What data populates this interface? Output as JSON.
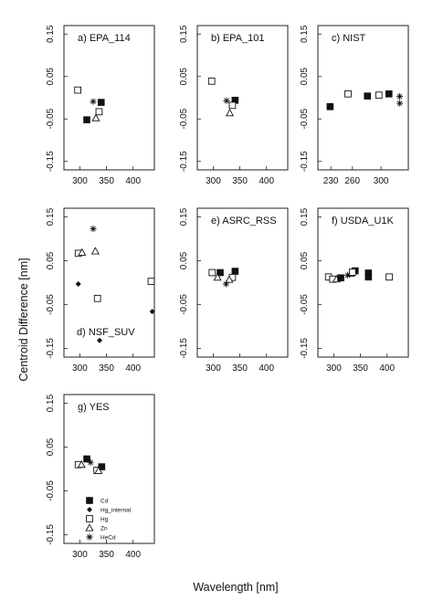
{
  "figure": {
    "ylabel": "Centroid Difference [nm]",
    "xlabel": "Wavelength [nm]"
  },
  "legend": [
    {
      "symbol": "filled-square",
      "label": "Cd"
    },
    {
      "symbol": "filled-diamond",
      "label": "Hg_internal"
    },
    {
      "symbol": "open-square",
      "label": "Hg"
    },
    {
      "symbol": "open-triangle",
      "label": "Zn"
    },
    {
      "symbol": "asterisk",
      "label": "HeCd"
    }
  ],
  "chart_data": [
    {
      "type": "scatter",
      "title": "a) EPA_114",
      "xlim": [
        270,
        440
      ],
      "ylim": [
        -0.17,
        0.17
      ],
      "xticks": [
        300,
        350,
        400
      ],
      "yticks": [
        0.15,
        0.05,
        -0.05,
        -0.15
      ],
      "ytick_labels": [
        "0.15",
        "0.05",
        "-0.05",
        "-0.15"
      ],
      "series": [
        {
          "symbol": "open-square",
          "points": [
            [
              296,
              0.018
            ]
          ]
        },
        {
          "symbol": "filled-square",
          "points": [
            [
              340,
              -0.011
            ],
            [
              313,
              -0.052
            ]
          ]
        },
        {
          "symbol": "asterisk",
          "points": [
            [
              325,
              -0.009
            ]
          ]
        },
        {
          "symbol": "open-square",
          "points": [
            [
              336,
              -0.033
            ]
          ]
        },
        {
          "symbol": "open-triangle",
          "points": [
            [
              330,
              -0.048
            ]
          ]
        }
      ]
    },
    {
      "type": "scatter",
      "title": "b) EPA_101",
      "xlim": [
        270,
        440
      ],
      "ylim": [
        -0.17,
        0.17
      ],
      "xticks": [
        300,
        350,
        400
      ],
      "yticks": [
        0.15,
        0.05,
        -0.05,
        -0.15
      ],
      "ytick_labels": [
        "0.15",
        "0.05",
        "-0.05",
        "-0.15"
      ],
      "series": [
        {
          "symbol": "open-square",
          "points": [
            [
              297,
              0.039
            ]
          ]
        },
        {
          "symbol": "filled-square",
          "points": [
            [
              341,
              -0.006
            ]
          ]
        },
        {
          "symbol": "asterisk",
          "points": [
            [
              325,
              -0.007
            ]
          ]
        },
        {
          "symbol": "open-square",
          "points": [
            [
              336,
              -0.018
            ]
          ]
        },
        {
          "symbol": "open-triangle",
          "points": [
            [
              331,
              -0.036
            ]
          ]
        }
      ]
    },
    {
      "type": "scatter",
      "title": "c) NIST",
      "xlim": [
        212,
        338
      ],
      "ylim": [
        -0.17,
        0.17
      ],
      "xticks": [
        230,
        260,
        300
      ],
      "yticks": [
        0.15,
        0.05,
        -0.05,
        -0.15
      ],
      "ytick_labels": [
        "0.15",
        "0.05",
        "-0.05",
        "-0.15"
      ],
      "series": [
        {
          "symbol": "filled-square",
          "points": [
            [
              229,
              -0.021
            ],
            [
              281,
              0.004
            ],
            [
              311,
              0.009
            ]
          ]
        },
        {
          "symbol": "open-square",
          "points": [
            [
              254,
              0.009
            ],
            [
              297,
              0.006
            ]
          ]
        },
        {
          "symbol": "asterisk",
          "points": [
            [
              326,
              0.003
            ],
            [
              326,
              -0.013
            ]
          ]
        }
      ]
    },
    {
      "type": "scatter",
      "title": "d) NSF_SUV",
      "xlim": [
        270,
        440
      ],
      "ylim": [
        -0.17,
        0.17
      ],
      "xticks": [
        300,
        350,
        400
      ],
      "yticks": [
        0.15,
        0.05,
        -0.05,
        -0.15
      ],
      "ytick_labels": [
        "0.15",
        "0.05",
        "-0.05",
        "-0.15"
      ],
      "series": [
        {
          "symbol": "asterisk",
          "points": [
            [
              325,
              0.123
            ]
          ]
        },
        {
          "symbol": "open-square",
          "points": [
            [
              297,
              0.067
            ]
          ]
        },
        {
          "symbol": "open-triangle",
          "points": [
            [
              304,
              0.069
            ],
            [
              329,
              0.072
            ]
          ]
        },
        {
          "symbol": "filled-diamond",
          "points": [
            [
              297,
              -0.003
            ],
            [
              337,
              -0.132
            ],
            [
              436,
              -0.066
            ]
          ]
        },
        {
          "symbol": "open-square",
          "points": [
            [
              333,
              -0.036
            ],
            [
              434,
              0.003
            ]
          ]
        }
      ]
    },
    {
      "type": "scatter",
      "title": "e) ASRC_RSS",
      "xlim": [
        270,
        440
      ],
      "ylim": [
        -0.17,
        0.17
      ],
      "xticks": [
        300,
        350,
        400
      ],
      "yticks": [
        0.15,
        0.05,
        -0.05,
        -0.15
      ],
      "ytick_labels": [
        "0.15",
        "0.05",
        "-0.05",
        "-0.15"
      ],
      "series": [
        {
          "symbol": "open-square",
          "points": [
            [
              298,
              0.023
            ]
          ]
        },
        {
          "symbol": "filled-square",
          "points": [
            [
              341,
              0.026
            ],
            [
              313,
              0.023
            ]
          ]
        },
        {
          "symbol": "open-triangle",
          "points": [
            [
              308,
              0.012
            ]
          ]
        },
        {
          "symbol": "open-square",
          "points": [
            [
              336,
              0.012
            ]
          ]
        },
        {
          "symbol": "open-triangle",
          "points": [
            [
              330,
              0.007
            ]
          ]
        },
        {
          "symbol": "asterisk",
          "points": [
            [
              324,
              -0.003
            ]
          ]
        }
      ]
    },
    {
      "type": "scatter",
      "title": "f) USDA_U1K",
      "xlim": [
        270,
        440
      ],
      "ylim": [
        -0.17,
        0.17
      ],
      "xticks": [
        300,
        350,
        400
      ],
      "yticks": [
        0.15,
        0.05,
        -0.05,
        -0.15
      ],
      "ytick_labels": [
        "0.15",
        "0.05",
        "-0.05",
        "-0.15"
      ],
      "series": [
        {
          "symbol": "open-square",
          "points": [
            [
              290,
              0.013
            ],
            [
              298,
              0.008
            ],
            [
              404,
              0.013
            ]
          ]
        },
        {
          "symbol": "open-triangle",
          "points": [
            [
              305,
              0.008
            ],
            [
              332,
              0.021
            ]
          ]
        },
        {
          "symbol": "filled-square",
          "points": [
            [
              313,
              0.011
            ],
            [
              340,
              0.027
            ],
            [
              365,
              0.022
            ],
            [
              365,
              0.013
            ]
          ]
        },
        {
          "symbol": "asterisk",
          "points": [
            [
              326,
              0.017
            ]
          ]
        },
        {
          "symbol": "open-square",
          "points": [
            [
              335,
              0.024
            ]
          ]
        }
      ]
    },
    {
      "type": "scatter",
      "title": "g) YES",
      "xlim": [
        270,
        440
      ],
      "ylim": [
        -0.17,
        0.17
      ],
      "xticks": [
        300,
        350,
        400
      ],
      "yticks": [
        0.15,
        0.05,
        -0.05,
        -0.15
      ],
      "ytick_labels": [
        "0.15",
        "0.05",
        "-0.05",
        "-0.15"
      ],
      "series": [
        {
          "symbol": "open-square",
          "points": [
            [
              297,
              0.01
            ]
          ]
        },
        {
          "symbol": "open-triangle",
          "points": [
            [
              303,
              0.01
            ]
          ]
        },
        {
          "symbol": "filled-square",
          "points": [
            [
              313,
              0.023
            ],
            [
              341,
              0.005
            ]
          ]
        },
        {
          "symbol": "asterisk",
          "points": [
            [
              320,
              0.015
            ]
          ]
        },
        {
          "symbol": "open-square",
          "points": [
            [
              332,
              -0.003
            ]
          ]
        },
        {
          "symbol": "open-triangle",
          "points": [
            [
              335,
              -0.004
            ]
          ]
        }
      ]
    }
  ]
}
